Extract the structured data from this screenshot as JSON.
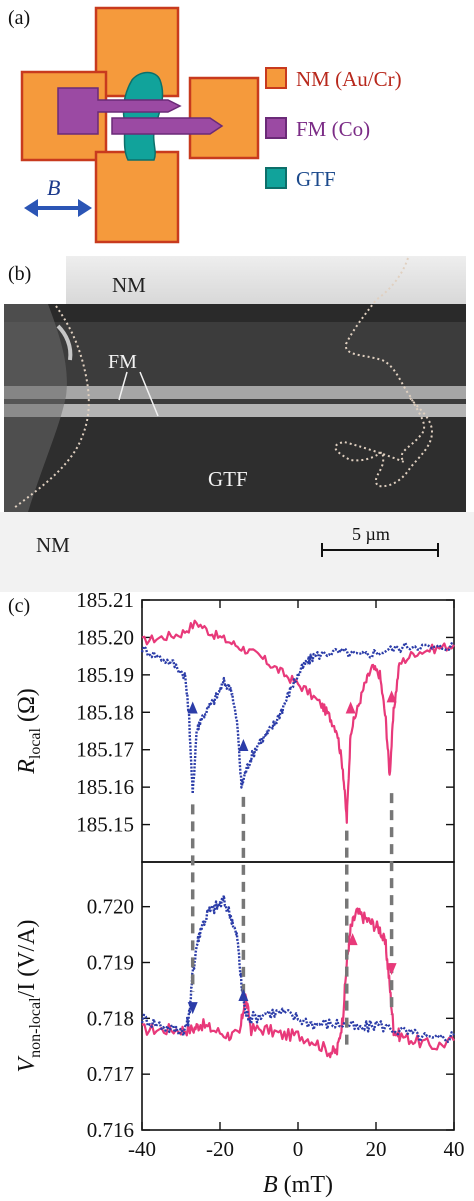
{
  "panel_a": {
    "label": "(a)",
    "b_label": "B",
    "legend": [
      {
        "text": "NM (Au/Cr)",
        "swatch": "#F59A3C",
        "border": "#C83A1E",
        "text_color": "#B8281C"
      },
      {
        "text": "FM (Co)",
        "swatch": "#9B4AA3",
        "border": "#6B2A78",
        "text_color": "#7B2C86"
      },
      {
        "text": "GTF",
        "swatch": "#11A39B",
        "border": "#0D6F6A",
        "text_color": "#1C4A8C"
      }
    ],
    "colors": {
      "nm": "#F59A3C",
      "nm_border": "#C83A1E",
      "fm": "#9B4AA3",
      "gtf": "#11A39B",
      "arrow": "#2B55B5"
    }
  },
  "panel_b": {
    "label": "(b)",
    "nm_top": "NM",
    "fm": "FM",
    "gtf": "GTF",
    "nm_bottom": "NM",
    "scale": "5 µm"
  },
  "panel_c": {
    "label": "(c)",
    "colors": {
      "magenta": "#E8397A",
      "blue": "#2B3CA8",
      "dash": "#777777"
    }
  },
  "chart_data": [
    {
      "type": "line",
      "title": "",
      "ylabel": "R_local (Ω)",
      "ylabel_main": "R",
      "ylabel_sub": "local",
      "ylabel_unit": "(Ω)",
      "xlim": [
        -40,
        40
      ],
      "ylim": [
        185.14,
        185.21
      ],
      "yticks": [
        "185.15",
        "185.16",
        "185.17",
        "185.18",
        "185.19",
        "185.20",
        "185.21"
      ],
      "series": [
        {
          "color": "#E8397A",
          "style": "solid",
          "x": [
            -40,
            -35,
            -30,
            -26,
            -22,
            -18,
            -14,
            -10,
            -6,
            -2,
            2,
            6,
            8,
            10,
            11.5,
            12.5,
            13.5,
            15,
            17,
            19,
            21,
            22.5,
            23.5,
            24.5,
            26,
            30,
            35,
            40
          ],
          "y": [
            185.199,
            185.2,
            185.201,
            185.204,
            185.201,
            185.199,
            185.197,
            185.195,
            185.192,
            185.189,
            185.186,
            185.182,
            185.179,
            185.175,
            185.165,
            185.151,
            185.175,
            185.18,
            185.187,
            185.192,
            185.19,
            185.178,
            185.163,
            185.18,
            185.193,
            185.196,
            185.197,
            185.198
          ]
        },
        {
          "color": "#2B3CA8",
          "style": "dotted",
          "x": [
            -40,
            -36,
            -32,
            -29,
            -28,
            -27,
            -26,
            -25,
            -23,
            -21,
            -19,
            -17,
            -15.5,
            -14.5,
            -13.5,
            -12,
            -10,
            -8,
            -6,
            -4,
            -2,
            0,
            2,
            4,
            8,
            12,
            16,
            20,
            25,
            30,
            35,
            40
          ],
          "y": [
            185.197,
            185.195,
            185.193,
            185.19,
            185.18,
            185.158,
            185.175,
            185.178,
            185.181,
            185.184,
            185.188,
            185.186,
            185.176,
            185.16,
            185.164,
            185.168,
            185.172,
            185.174,
            185.177,
            185.181,
            185.186,
            185.19,
            185.193,
            185.195,
            185.196,
            185.196,
            185.195,
            185.196,
            185.197,
            185.198,
            185.197,
            185.198
          ]
        }
      ]
    },
    {
      "type": "line",
      "title": "",
      "xlabel": "B (mT)",
      "xlabel_main": "B",
      "xlabel_unit": "(mT)",
      "ylabel": "V_non-local/I (V/A)",
      "ylabel_main": "V",
      "ylabel_sub": "non-local",
      "ylabel_rest": "/I (V/A)",
      "xlim": [
        -40,
        40
      ],
      "xticks": [
        "-40",
        "-20",
        "0",
        "20",
        "40"
      ],
      "ylim": [
        0.716,
        0.7208
      ],
      "yticks": [
        "0.716",
        "0.717",
        "0.718",
        "0.719",
        "0.720"
      ],
      "series": [
        {
          "color": "#E8397A",
          "style": "solid",
          "x": [
            -40,
            -35,
            -30,
            -27,
            -25,
            -22,
            -18,
            -15,
            -13.5,
            -12,
            -8,
            -4,
            0,
            4,
            8,
            10,
            11.5,
            12.5,
            13.5,
            15,
            17,
            19,
            21,
            22.5,
            23.5,
            24.5,
            26,
            30,
            35,
            40
          ],
          "y": [
            0.7178,
            0.7178,
            0.7178,
            0.7178,
            0.7179,
            0.7178,
            0.7177,
            0.7177,
            0.7184,
            0.7178,
            0.7178,
            0.7177,
            0.7177,
            0.7176,
            0.7174,
            0.7174,
            0.718,
            0.719,
            0.7196,
            0.7199,
            0.7198,
            0.7197,
            0.7196,
            0.7193,
            0.7186,
            0.7178,
            0.7177,
            0.7176,
            0.7175,
            0.7176
          ]
        },
        {
          "color": "#2B3CA8",
          "style": "dotted",
          "x": [
            -40,
            -36,
            -32,
            -29,
            -28,
            -27,
            -26,
            -25,
            -23,
            -21,
            -19,
            -17,
            -15.5,
            -14.5,
            -13.5,
            -12,
            -8,
            -4,
            0,
            4,
            8,
            12,
            16,
            20,
            25,
            30,
            35,
            40
          ],
          "y": [
            0.718,
            0.7179,
            0.7178,
            0.7178,
            0.718,
            0.7188,
            0.7193,
            0.7196,
            0.7199,
            0.72,
            0.7201,
            0.7198,
            0.7194,
            0.7186,
            0.7181,
            0.718,
            0.7181,
            0.7181,
            0.718,
            0.7179,
            0.7179,
            0.7179,
            0.7178,
            0.7179,
            0.7178,
            0.7177,
            0.7176,
            0.7177
          ]
        }
      ]
    }
  ]
}
